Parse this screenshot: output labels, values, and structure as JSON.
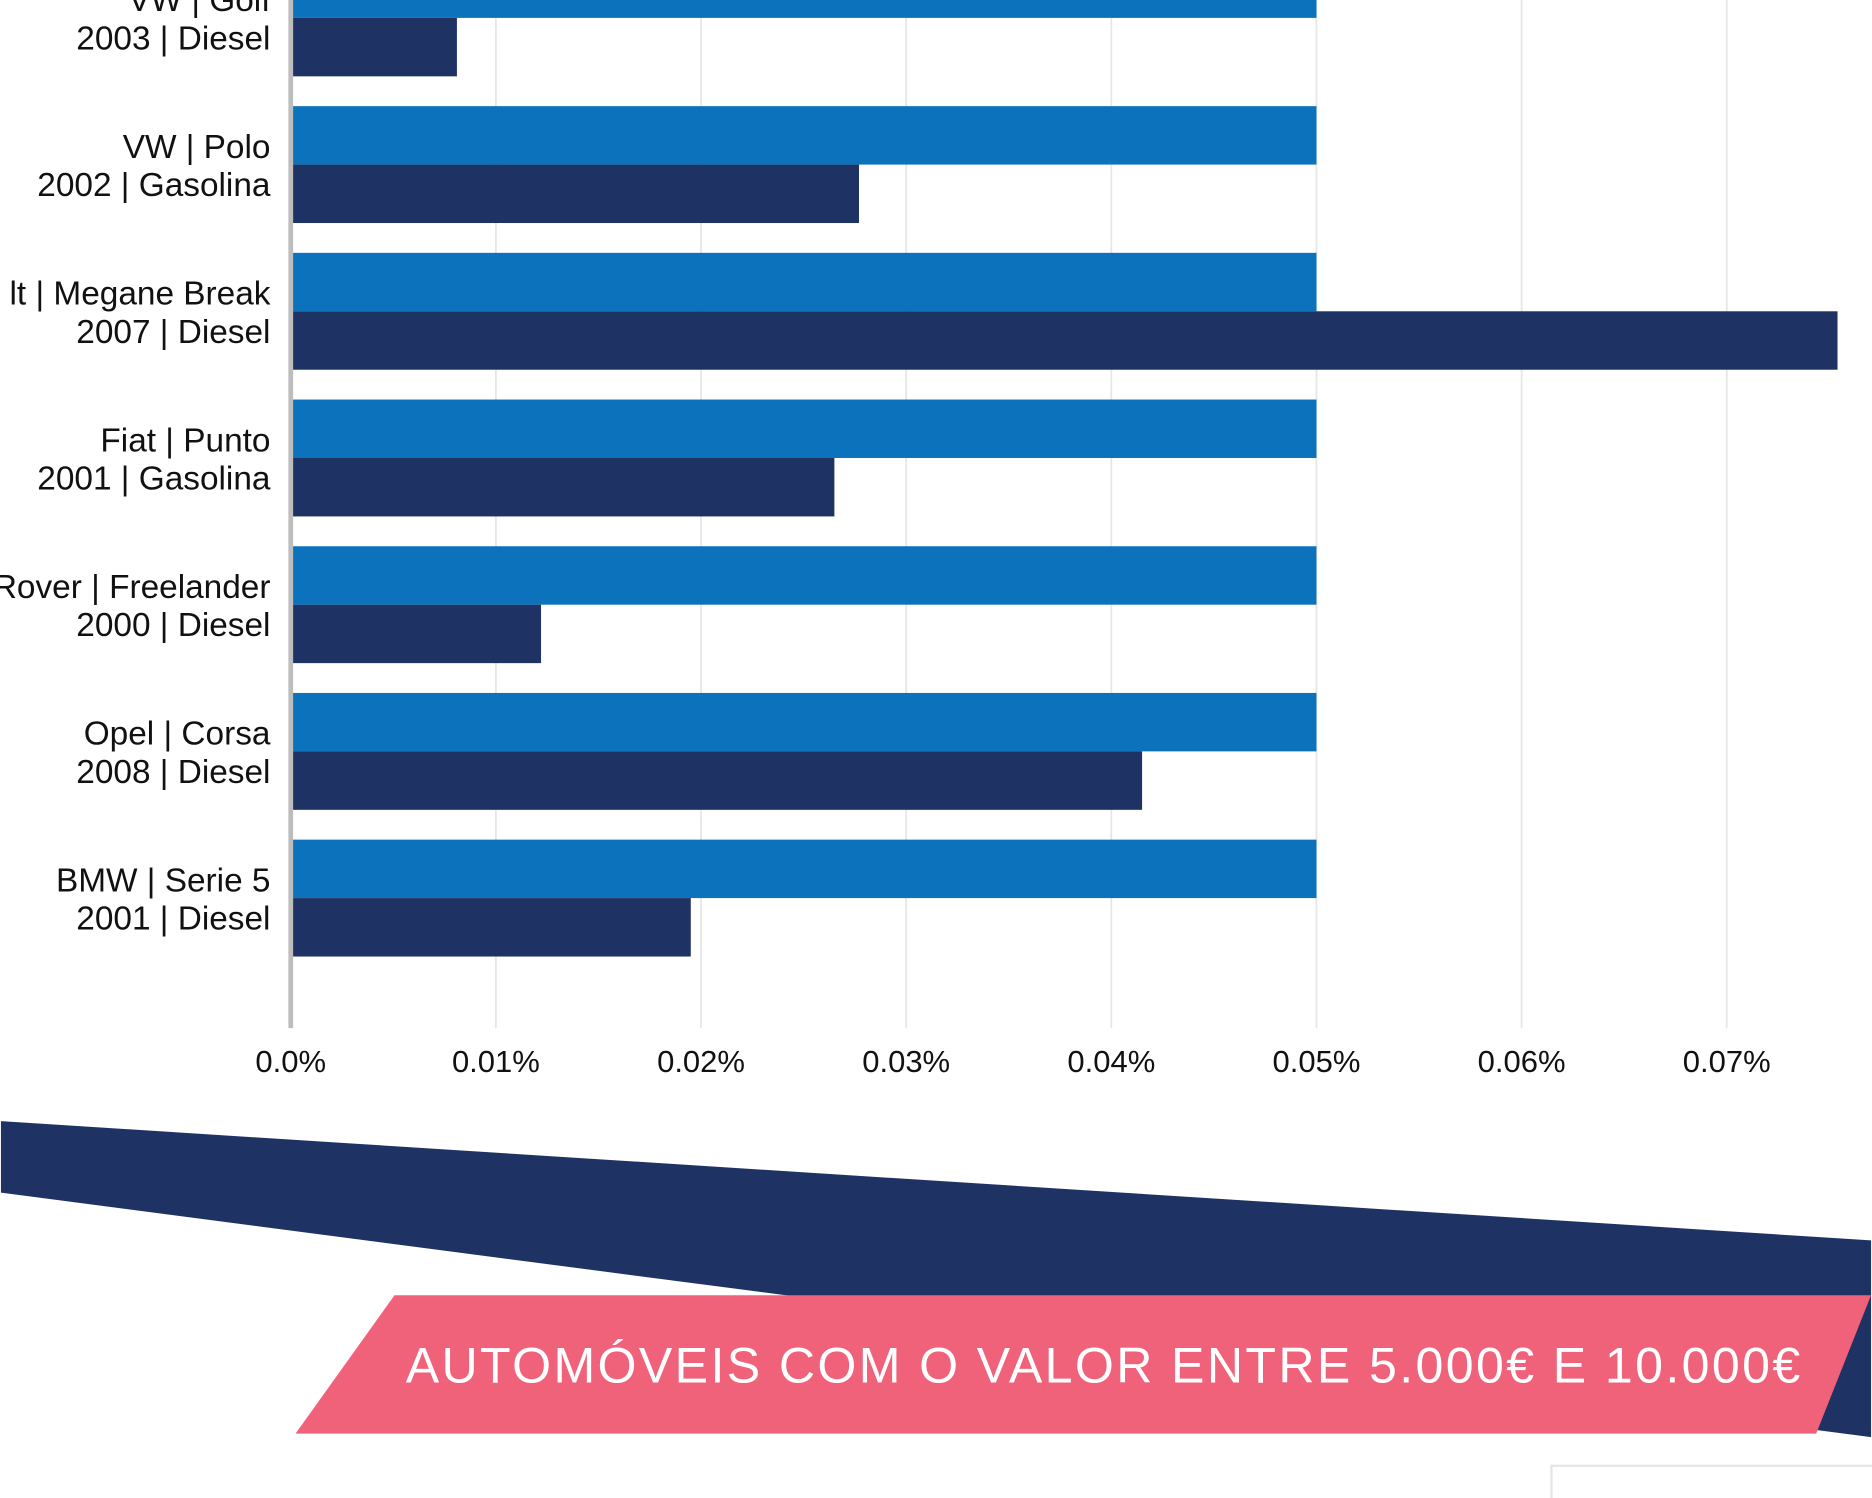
{
  "chart_data": {
    "type": "bar",
    "orientation": "horizontal",
    "categories": [
      [
        "VW | Golf",
        "2003 | Diesel"
      ],
      [
        "VW | Polo",
        "2002 | Gasolina"
      ],
      [
        "lt | Megane Break",
        "2007 | Diesel"
      ],
      [
        "Fiat | Punto",
        "2001 | Gasolina"
      ],
      [
        "Rover | Freelander",
        "2000 | Diesel"
      ],
      [
        "Opel | Corsa",
        "2008 | Diesel"
      ],
      [
        "BMW | Serie 5",
        "2001 | Diesel"
      ]
    ],
    "series": [
      {
        "color": "#0c72bb",
        "values": [
          0.05,
          0.05,
          0.05,
          0.05,
          0.05,
          0.05,
          0.05
        ]
      },
      {
        "color": "#1e3264",
        "values": [
          0.0081,
          0.0277,
          0.0754,
          0.0265,
          0.0122,
          0.0415,
          0.0195
        ]
      }
    ],
    "xlim": [
      0,
      0.077
    ],
    "xticks": [
      {
        "value": 0,
        "label": "0.0%"
      },
      {
        "value": 0.01,
        "label": "0.01%"
      },
      {
        "value": 0.02,
        "label": "0.02%"
      },
      {
        "value": 0.03,
        "label": "0.03%"
      },
      {
        "value": 0.04,
        "label": "0.04%"
      },
      {
        "value": 0.05,
        "label": "0.05%"
      },
      {
        "value": 0.06,
        "label": "0.06%"
      },
      {
        "value": 0.07,
        "label": "0.07%"
      }
    ],
    "grid": true,
    "banner": "AUTOMÓVEIS COM O VALOR ENTRE 5.000€ E 10.000€"
  }
}
